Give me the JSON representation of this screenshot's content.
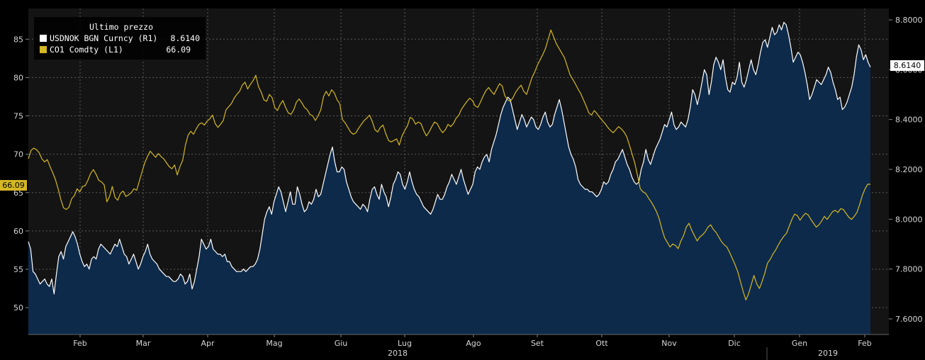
{
  "chart_data": {
    "type": "line",
    "legend": {
      "title": "Ultimo prezzo",
      "placement": "top-left",
      "entries": [
        {
          "label": "USDNOK BGN Curncy  (R1)",
          "value": "8.6140",
          "color": "#ffffff"
        },
        {
          "label": "CO1 Comdty  (L1)",
          "value": "66.09",
          "color": "#d4b824"
        }
      ]
    },
    "x_ticks": [
      "Feb",
      "Mar",
      "Apr",
      "Mag",
      "Giu",
      "Lug",
      "Ago",
      "Set",
      "Ott",
      "Nov",
      "Dic",
      "Gen",
      "Feb"
    ],
    "year_labels": [
      "2018",
      "2019"
    ],
    "left_axis": {
      "min": 46.5,
      "max": 89,
      "ticks": [
        "85",
        "80",
        "75",
        "70",
        "65",
        "60",
        "55",
        "50"
      ]
    },
    "right_axis": {
      "min": 7.6,
      "max": 8.8,
      "ticks": [
        "8.8000",
        "8.6000",
        "8.4000",
        "8.2000",
        "8.0000",
        "7.8000",
        "7.6000"
      ]
    },
    "grid": true,
    "last_values": {
      "left": "66.09",
      "right": "8.6140"
    },
    "series": [
      {
        "name": "USDNOK BGN Curncy",
        "axis": "right",
        "color": "#ffffff",
        "fill": "#0e2a4a",
        "values": [
          7.91,
          7.88,
          7.79,
          7.78,
          7.76,
          7.74,
          7.75,
          7.76,
          7.74,
          7.73,
          7.76,
          7.7,
          7.78,
          7.85,
          7.87,
          7.84,
          7.89,
          7.91,
          7.93,
          7.95,
          7.93,
          7.9,
          7.86,
          7.83,
          7.81,
          7.82,
          7.8,
          7.84,
          7.85,
          7.84,
          7.88,
          7.9,
          7.89,
          7.88,
          7.87,
          7.86,
          7.88,
          7.9,
          7.89,
          7.92,
          7.89,
          7.86,
          7.85,
          7.82,
          7.84,
          7.86,
          7.83,
          7.8,
          7.82,
          7.85,
          7.87,
          7.9,
          7.86,
          7.84,
          7.83,
          7.82,
          7.8,
          7.79,
          7.78,
          7.77,
          7.77,
          7.76,
          7.75,
          7.75,
          7.76,
          7.78,
          7.77,
          7.74,
          7.75,
          7.78,
          7.72,
          7.75,
          7.8,
          7.85,
          7.92,
          7.9,
          7.88,
          7.89,
          7.92,
          7.88,
          7.87,
          7.86,
          7.86,
          7.85,
          7.86,
          7.83,
          7.83,
          7.81,
          7.8,
          7.79,
          7.79,
          7.79,
          7.8,
          7.79,
          7.8,
          7.81,
          7.81,
          7.82,
          7.84,
          7.88,
          7.94,
          8.0,
          8.03,
          8.05,
          8.02,
          8.07,
          8.1,
          8.13,
          8.11,
          8.07,
          8.03,
          8.07,
          8.11,
          8.06,
          8.06,
          8.13,
          8.1,
          8.06,
          8.03,
          8.04,
          8.07,
          8.06,
          8.08,
          8.12,
          8.09,
          8.1,
          8.14,
          8.18,
          8.22,
          8.26,
          8.29,
          8.23,
          8.19,
          8.19,
          8.21,
          8.2,
          8.15,
          8.12,
          8.09,
          8.07,
          8.06,
          8.05,
          8.04,
          8.06,
          8.05,
          8.03,
          8.08,
          8.12,
          8.13,
          8.1,
          8.08,
          8.14,
          8.11,
          8.09,
          8.05,
          8.09,
          8.14,
          8.16,
          8.19,
          8.18,
          8.14,
          8.12,
          8.15,
          8.19,
          8.15,
          8.12,
          8.1,
          8.09,
          8.07,
          8.05,
          8.04,
          8.03,
          8.02,
          8.04,
          8.07,
          8.1,
          8.08,
          8.08,
          8.1,
          8.13,
          8.15,
          8.18,
          8.16,
          8.14,
          8.17,
          8.2,
          8.16,
          8.13,
          8.1,
          8.12,
          8.14,
          8.19,
          8.21,
          8.2,
          8.23,
          8.25,
          8.26,
          8.23,
          8.28,
          8.31,
          8.34,
          8.38,
          8.42,
          8.45,
          8.47,
          8.49,
          8.48,
          8.44,
          8.4,
          8.36,
          8.39,
          8.42,
          8.4,
          8.37,
          8.39,
          8.41,
          8.4,
          8.37,
          8.36,
          8.38,
          8.41,
          8.43,
          8.39,
          8.37,
          8.38,
          8.42,
          8.45,
          8.48,
          8.44,
          8.39,
          8.34,
          8.29,
          8.26,
          8.24,
          8.21,
          8.16,
          8.14,
          8.13,
          8.12,
          8.12,
          8.11,
          8.11,
          8.1,
          8.09,
          8.1,
          8.12,
          8.15,
          8.14,
          8.15,
          8.18,
          8.2,
          8.23,
          8.24,
          8.26,
          8.28,
          8.25,
          8.22,
          8.2,
          8.17,
          8.15,
          8.14,
          8.15,
          8.2,
          8.23,
          8.28,
          8.24,
          8.22,
          8.25,
          8.28,
          8.3,
          8.32,
          8.35,
          8.38,
          8.37,
          8.4,
          8.43,
          8.38,
          8.36,
          8.37,
          8.39,
          8.38,
          8.37,
          8.4,
          8.45,
          8.52,
          8.5,
          8.46,
          8.5,
          8.55,
          8.6,
          8.58,
          8.5,
          8.55,
          8.62,
          8.65,
          8.63,
          8.6,
          8.64,
          8.57,
          8.52,
          8.51,
          8.55,
          8.54,
          8.57,
          8.63,
          8.55,
          8.53,
          8.56,
          8.6,
          8.64,
          8.6,
          8.58,
          8.62,
          8.67,
          8.71,
          8.72,
          8.69,
          8.73,
          8.77,
          8.74,
          8.75,
          8.78,
          8.76,
          8.79,
          8.78,
          8.74,
          8.69,
          8.63,
          8.65,
          8.67,
          8.66,
          8.63,
          8.59,
          8.54,
          8.48,
          8.5,
          8.53,
          8.56,
          8.55,
          8.54,
          8.56,
          8.58,
          8.61,
          8.59,
          8.55,
          8.52,
          8.48,
          8.49,
          8.44,
          8.45,
          8.47,
          8.5,
          8.53,
          8.58,
          8.65,
          8.7,
          8.68,
          8.64,
          8.66,
          8.63,
          8.61
        ]
      },
      {
        "name": "CO1 Comdty",
        "axis": "left",
        "color": "#d4b824",
        "values": [
          69.4,
          70.5,
          70.8,
          70.6,
          70.2,
          69.4,
          69.0,
          69.3,
          68.4,
          67.6,
          66.7,
          65.5,
          64.1,
          63.0,
          62.8,
          63.1,
          64.2,
          64.6,
          65.5,
          65.1,
          65.8,
          65.9,
          66.6,
          67.5,
          68.0,
          67.4,
          66.6,
          66.4,
          66.0,
          63.8,
          64.5,
          65.8,
          64.4,
          64.0,
          64.9,
          65.2,
          64.5,
          64.7,
          65.0,
          65.5,
          65.3,
          66.5,
          67.7,
          68.9,
          69.7,
          70.4,
          70.0,
          69.6,
          70.1,
          69.7,
          69.4,
          68.9,
          68.4,
          68.1,
          68.6,
          67.3,
          68.4,
          69.2,
          71.2,
          72.5,
          73.0,
          72.6,
          73.3,
          73.9,
          74.1,
          73.8,
          74.3,
          74.6,
          75.1,
          74.0,
          73.5,
          73.9,
          74.4,
          75.8,
          76.2,
          76.6,
          77.3,
          77.8,
          78.2,
          79.0,
          79.4,
          78.5,
          79.1,
          79.6,
          80.3,
          78.8,
          78.1,
          77.1,
          76.9,
          77.8,
          77.4,
          76.1,
          75.7,
          76.5,
          77.0,
          76.1,
          75.4,
          75.2,
          75.8,
          76.8,
          77.2,
          76.7,
          76.1,
          75.8,
          75.2,
          75.0,
          74.4,
          75.0,
          75.8,
          77.5,
          78.2,
          77.6,
          78.4,
          78.0,
          77.1,
          76.6,
          74.5,
          74.1,
          73.5,
          72.9,
          72.6,
          72.8,
          73.4,
          73.9,
          74.4,
          74.7,
          75.1,
          74.3,
          73.2,
          72.9,
          73.5,
          73.8,
          72.7,
          71.8,
          71.6,
          71.8,
          72.0,
          71.2,
          72.4,
          73.1,
          73.7,
          74.8,
          74.6,
          73.9,
          74.2,
          74.0,
          73.1,
          72.4,
          72.9,
          73.6,
          74.2,
          74.0,
          73.3,
          72.8,
          73.2,
          73.9,
          73.6,
          74.0,
          74.7,
          75.1,
          75.9,
          76.4,
          76.9,
          77.3,
          77.0,
          76.3,
          76.1,
          76.8,
          77.6,
          78.3,
          78.7,
          78.2,
          77.8,
          78.5,
          79.2,
          78.9,
          77.6,
          77.1,
          76.9,
          77.4,
          78.1,
          78.6,
          79.0,
          78.2,
          77.8,
          78.9,
          80.0,
          80.7,
          81.6,
          82.3,
          83.0,
          83.8,
          85.0,
          86.2,
          85.3,
          84.4,
          83.8,
          83.2,
          82.6,
          81.5,
          80.4,
          79.8,
          79.2,
          78.5,
          77.9,
          77.1,
          76.3,
          75.4,
          75.1,
          75.7,
          75.3,
          74.8,
          74.4,
          74.0,
          73.5,
          73.1,
          72.8,
          73.2,
          73.6,
          73.3,
          72.9,
          72.3,
          71.2,
          70.0,
          68.8,
          67.2,
          65.5,
          65.1,
          64.9,
          64.3,
          63.8,
          63.2,
          62.5,
          61.6,
          60.2,
          59.1,
          58.5,
          57.9,
          58.3,
          58.1,
          57.7,
          58.7,
          59.4,
          60.5,
          61.0,
          60.1,
          59.4,
          58.7,
          59.2,
          59.5,
          59.9,
          60.5,
          60.8,
          60.2,
          59.8,
          59.2,
          58.6,
          58.2,
          57.9,
          57.2,
          56.4,
          55.6,
          54.7,
          53.4,
          52.1,
          51.0,
          51.8,
          53.0,
          54.2,
          53.1,
          52.5,
          53.4,
          54.5,
          55.8,
          56.3,
          57.0,
          57.5,
          58.2,
          58.8,
          59.3,
          59.7,
          60.6,
          61.5,
          62.2,
          62.0,
          61.4,
          61.9,
          62.3,
          62.1,
          61.5,
          61.0,
          60.5,
          60.8,
          61.3,
          61.9,
          61.5,
          62.0,
          62.5,
          62.7,
          62.4,
          62.9,
          62.8,
          62.3,
          61.8,
          61.5,
          61.9,
          62.4,
          63.4,
          64.6,
          65.5,
          66.1,
          66.09
        ]
      }
    ]
  }
}
